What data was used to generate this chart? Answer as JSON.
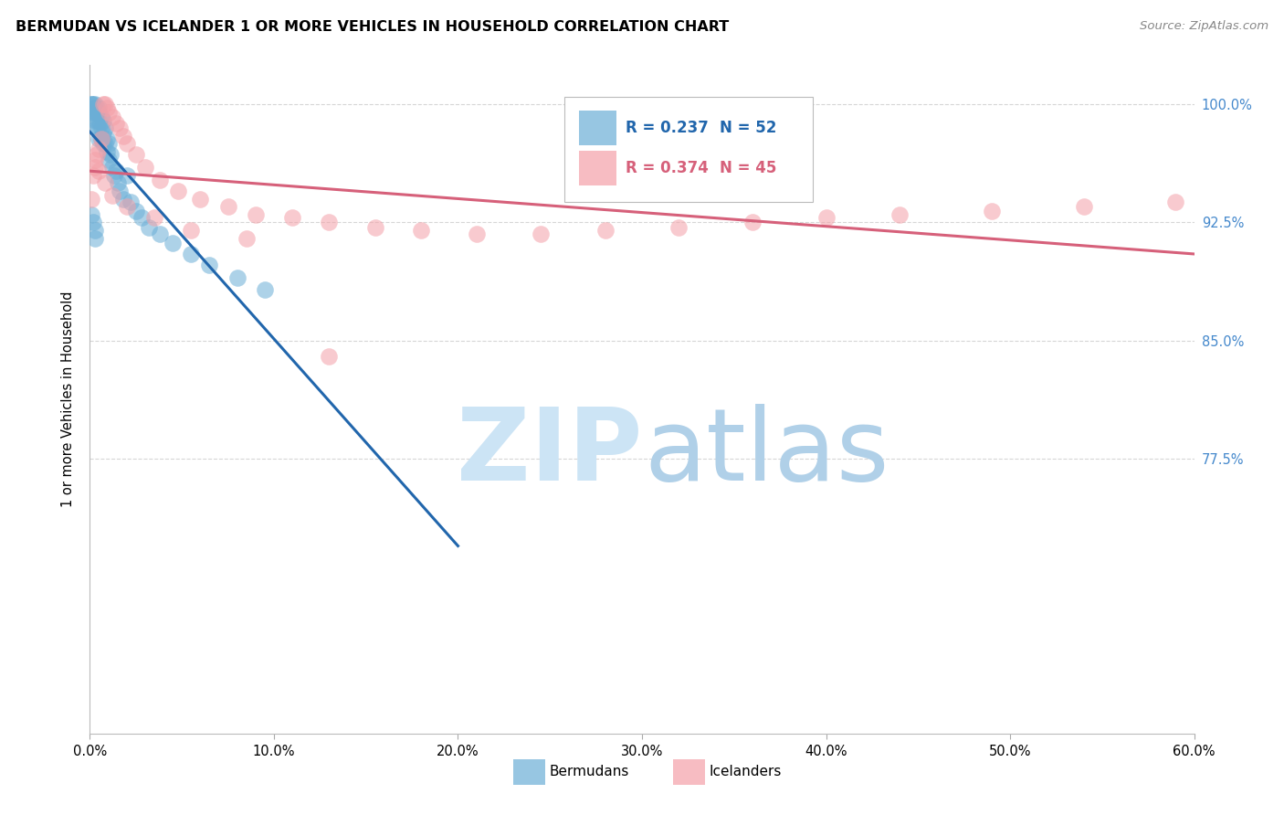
{
  "title": "BERMUDAN VS ICELANDER 1 OR MORE VEHICLES IN HOUSEHOLD CORRELATION CHART",
  "source": "Source: ZipAtlas.com",
  "ylabel": "1 or more Vehicles in Household",
  "xlim": [
    0.0,
    0.6
  ],
  "ylim": [
    0.6,
    1.025
  ],
  "xtick_labels": [
    "0.0%",
    "10.0%",
    "20.0%",
    "30.0%",
    "40.0%",
    "50.0%",
    "60.0%"
  ],
  "xtick_values": [
    0.0,
    0.1,
    0.2,
    0.3,
    0.4,
    0.5,
    0.6
  ],
  "ytick_labels": [
    "100.0%",
    "92.5%",
    "85.0%",
    "77.5%"
  ],
  "ytick_values": [
    1.0,
    0.925,
    0.85,
    0.775
  ],
  "legend_R_blue": "R = 0.237",
  "legend_N_blue": "N = 52",
  "legend_R_pink": "R = 0.374",
  "legend_N_pink": "N = 45",
  "blue_color": "#6baed6",
  "pink_color": "#f4a0a8",
  "blue_line_color": "#2166ac",
  "pink_line_color": "#d6607a",
  "blue_text_color": "#2166ac",
  "pink_text_color": "#d6607a",
  "right_tick_color": "#4488cc",
  "bermuda_x": [
    0.001,
    0.001,
    0.002,
    0.002,
    0.002,
    0.003,
    0.003,
    0.003,
    0.003,
    0.004,
    0.004,
    0.004,
    0.004,
    0.005,
    0.005,
    0.005,
    0.005,
    0.005,
    0.006,
    0.006,
    0.006,
    0.007,
    0.007,
    0.007,
    0.008,
    0.008,
    0.009,
    0.009,
    0.01,
    0.01,
    0.011,
    0.012,
    0.013,
    0.014,
    0.015,
    0.016,
    0.018,
    0.02,
    0.022,
    0.025,
    0.028,
    0.032,
    0.038,
    0.045,
    0.055,
    0.065,
    0.08,
    0.095,
    0.001,
    0.002,
    0.003,
    0.003
  ],
  "bermuda_y": [
    1.0,
    1.0,
    1.0,
    0.998,
    0.995,
    1.0,
    0.998,
    0.995,
    0.99,
    0.998,
    0.995,
    0.99,
    0.985,
    0.998,
    0.995,
    0.99,
    0.985,
    0.978,
    0.992,
    0.985,
    0.978,
    0.99,
    0.982,
    0.975,
    0.985,
    0.975,
    0.978,
    0.97,
    0.975,
    0.965,
    0.968,
    0.96,
    0.955,
    0.958,
    0.95,
    0.945,
    0.94,
    0.955,
    0.938,
    0.932,
    0.928,
    0.922,
    0.918,
    0.912,
    0.905,
    0.898,
    0.89,
    0.882,
    0.93,
    0.925,
    0.92,
    0.915
  ],
  "icelander_x": [
    0.001,
    0.002,
    0.003,
    0.004,
    0.005,
    0.006,
    0.007,
    0.008,
    0.009,
    0.01,
    0.012,
    0.014,
    0.016,
    0.018,
    0.02,
    0.025,
    0.03,
    0.038,
    0.048,
    0.06,
    0.075,
    0.09,
    0.11,
    0.13,
    0.155,
    0.18,
    0.21,
    0.245,
    0.28,
    0.32,
    0.36,
    0.4,
    0.44,
    0.49,
    0.54,
    0.59,
    0.003,
    0.005,
    0.008,
    0.012,
    0.02,
    0.035,
    0.055,
    0.085,
    0.13
  ],
  "icelander_y": [
    0.94,
    0.955,
    0.96,
    0.968,
    0.972,
    0.978,
    1.0,
    1.0,
    0.998,
    0.995,
    0.992,
    0.988,
    0.985,
    0.98,
    0.975,
    0.968,
    0.96,
    0.952,
    0.945,
    0.94,
    0.935,
    0.93,
    0.928,
    0.925,
    0.922,
    0.92,
    0.918,
    0.918,
    0.92,
    0.922,
    0.925,
    0.928,
    0.93,
    0.932,
    0.935,
    0.938,
    0.965,
    0.958,
    0.95,
    0.942,
    0.935,
    0.928,
    0.92,
    0.915,
    0.84
  ],
  "watermark_zip_color": "#cce4f5",
  "watermark_atlas_color": "#b0d0e8"
}
